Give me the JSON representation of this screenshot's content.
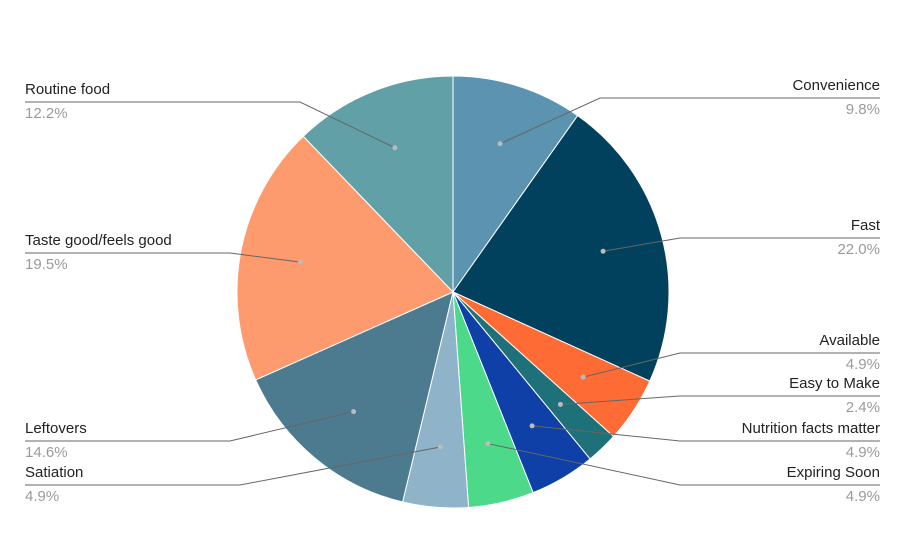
{
  "chart_data": {
    "type": "pie",
    "categories": [
      "Convenience",
      "Fast",
      "Available",
      "Easy to Make",
      "Nutrition facts matter",
      "Expiring Soon",
      "Satiation",
      "Leftovers",
      "Taste good/feels good",
      "Routine food"
    ],
    "values": [
      9.8,
      22.0,
      4.9,
      2.4,
      4.9,
      4.9,
      4.9,
      14.6,
      19.5,
      12.2
    ],
    "value_labels": [
      "9.8%",
      "22.0%",
      "4.9%",
      "2.4%",
      "4.9%",
      "4.9%",
      "4.9%",
      "14.6%",
      "19.5%",
      "12.2%"
    ],
    "colors": [
      "#5b93b0",
      "#01415e",
      "#ff6b35",
      "#1e7178",
      "#0f40a8",
      "#4cd98a",
      "#8fb3c8",
      "#4c7a8e",
      "#fd9a6e",
      "#62a0a8"
    ]
  }
}
